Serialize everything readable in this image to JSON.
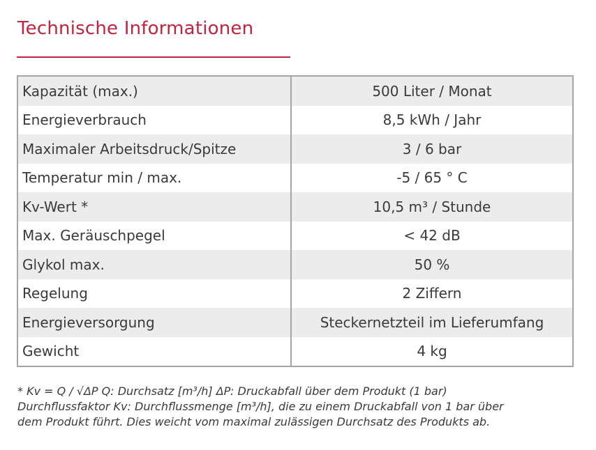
{
  "header": {
    "title": "Technische Informationen"
  },
  "table": {
    "rows": [
      [
        "Kapazität (max.)",
        "500 Liter / Monat"
      ],
      [
        "Energieverbrauch",
        "8,5 kWh / Jahr"
      ],
      [
        "Maximaler Arbeitsdruck/Spitze",
        "3 / 6 bar"
      ],
      [
        "Temperatur min / max.",
        "-5 / 65 ° C"
      ],
      [
        "Kv-Wert *",
        "10,5 m³ / Stunde"
      ],
      [
        "Max. Geräuschpegel",
        "< 42 dB"
      ],
      [
        "Glykol max.",
        "50 %"
      ],
      [
        "Regelung",
        "2 Ziffern"
      ],
      [
        "Energieversorgung",
        "Steckernetzteil im Lieferumfang"
      ],
      [
        "Gewicht",
        "4 kg"
      ]
    ]
  },
  "footnote": {
    "lines": [
      "* Kv = Q / √ΔP Q: Durchsatz [m³/h] ΔP: Druckabfall über dem Produkt (1 bar)",
      "Durchflussfaktor Kv: Durchflussmenge [m³/h], die zu einem Druckabfall von 1 bar über",
      "dem Produkt führt. Dies weicht vom maximal zulässigen Durchsatz des Produkts ab."
    ]
  }
}
